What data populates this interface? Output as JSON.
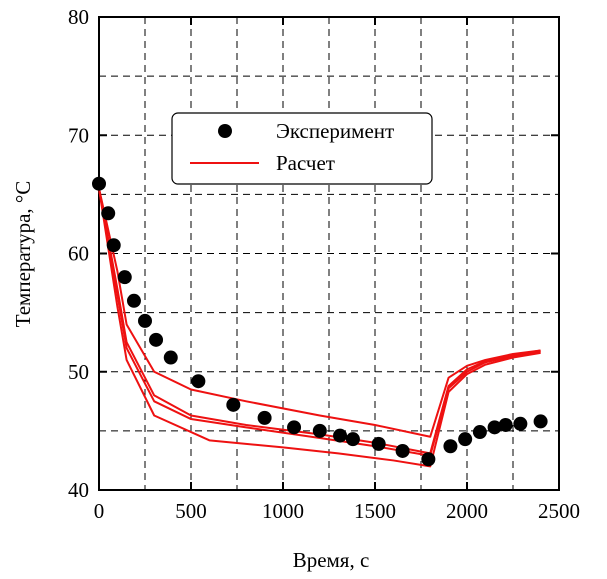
{
  "chart_data": {
    "type": "scatter+line",
    "xlabel": "Время, с",
    "ylabel": "Температура, °С",
    "xlim": [
      0,
      2500
    ],
    "ylim": [
      40,
      80
    ],
    "xticks": [
      0,
      500,
      1000,
      1500,
      2000,
      2500
    ],
    "yticks": [
      40,
      50,
      60,
      70,
      80
    ],
    "grid": "dashed",
    "legend_position": "upper-center",
    "legend": {
      "experiment": "Эксперимент",
      "calculation": "Расчет"
    },
    "colors": {
      "experiment": "#000000",
      "calculation": "#ee1111"
    },
    "experiment": {
      "name": "Эксперимент",
      "x": [
        0,
        50,
        80,
        140,
        190,
        250,
        310,
        390,
        540,
        730,
        900,
        1060,
        1200,
        1310,
        1380,
        1520,
        1650,
        1790,
        1910,
        1990,
        2070,
        2150,
        2210,
        2290,
        2400
      ],
      "y": [
        65.9,
        63.4,
        60.7,
        58.0,
        56.0,
        54.3,
        52.7,
        51.2,
        49.2,
        47.2,
        46.1,
        45.3,
        45.0,
        44.6,
        44.3,
        43.9,
        43.3,
        42.6,
        43.7,
        44.3,
        44.9,
        45.3,
        45.5,
        45.6,
        45.8
      ]
    },
    "calculation": {
      "name": "Расчет",
      "curves": [
        {
          "x": [
            0,
            100,
            150,
            300,
            500,
            800,
            1200,
            1500,
            1800,
            1900,
            2000,
            2100,
            2250,
            2400
          ],
          "y": [
            65.5,
            58.5,
            54.0,
            50.0,
            48.5,
            47.5,
            46.3,
            45.5,
            44.5,
            49.5,
            50.5,
            51.0,
            51.5,
            51.8
          ]
        },
        {
          "x": [
            0,
            100,
            150,
            300,
            500,
            800,
            1200,
            1500,
            1800,
            1900,
            2000,
            2100,
            2250,
            2400
          ],
          "y": [
            65.5,
            57.0,
            52.5,
            48.0,
            46.3,
            45.5,
            44.7,
            44.0,
            43.1,
            48.8,
            50.2,
            50.9,
            51.4,
            51.8
          ]
        },
        {
          "x": [
            0,
            100,
            150,
            300,
            500,
            800,
            1200,
            1500,
            1800,
            1900,
            2000,
            2100,
            2250,
            2400
          ],
          "y": [
            65.5,
            56.5,
            52.0,
            47.5,
            46.0,
            45.3,
            44.4,
            43.7,
            42.9,
            48.6,
            50.0,
            50.8,
            51.3,
            51.7
          ]
        },
        {
          "x": [
            0,
            100,
            150,
            300,
            600,
            1000,
            1300,
            1600,
            1800,
            1900,
            2000,
            2100,
            2250,
            2400
          ],
          "y": [
            65.5,
            55.5,
            51.0,
            46.3,
            44.2,
            43.6,
            43.1,
            42.5,
            42.0,
            48.3,
            49.8,
            50.6,
            51.2,
            51.6
          ]
        }
      ]
    }
  }
}
